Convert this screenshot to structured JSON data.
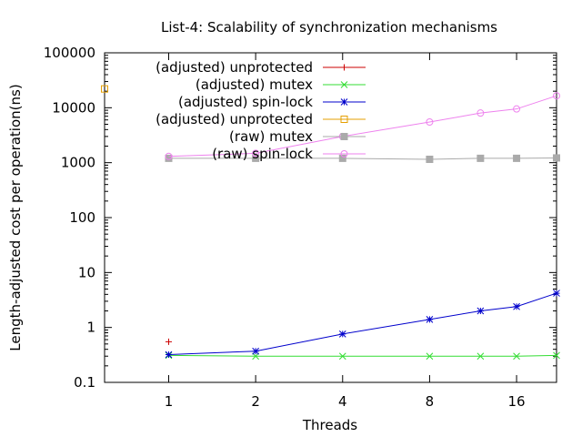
{
  "chart_data": {
    "type": "line",
    "title": "List-4: Scalability of synchronization mechanisms",
    "xlabel": "Threads",
    "ylabel": "Length-adjusted cost per operation(ns)",
    "x_scale": "log2",
    "y_scale": "log10",
    "xlim": [
      0.6,
      22
    ],
    "ylim": [
      0.1,
      100000
    ],
    "x_ticks": [
      1,
      2,
      4,
      8,
      16
    ],
    "x_tick_labels": [
      "1",
      "2",
      "4",
      "8",
      "16"
    ],
    "y_ticks": [
      0.1,
      1,
      10,
      100,
      1000,
      10000,
      100000
    ],
    "y_tick_labels": [
      "0.1",
      "1",
      "10",
      "100",
      "1000",
      "10000",
      "100000"
    ],
    "legend_position": "top-left",
    "series": [
      {
        "name": "(adjusted) unprotected",
        "color": "#cc0000",
        "marker": "plus",
        "line": false,
        "x": [
          1
        ],
        "y": [
          0.55
        ]
      },
      {
        "name": "(adjusted) mutex",
        "color": "#33dd33",
        "marker": "cross",
        "line": true,
        "x": [
          1,
          2,
          4,
          8,
          12,
          16,
          22
        ],
        "y": [
          0.31,
          0.3,
          0.3,
          0.3,
          0.3,
          0.3,
          0.31
        ]
      },
      {
        "name": "(adjusted) spin-lock",
        "color": "#0000cc",
        "marker": "star",
        "line": true,
        "x": [
          1,
          2,
          4,
          8,
          12,
          16,
          22
        ],
        "y": [
          0.32,
          0.37,
          0.76,
          1.4,
          2.0,
          2.4,
          4.2
        ]
      },
      {
        "name": "(adjusted) unprotected",
        "color": "#e69f00",
        "marker": "square",
        "line": false,
        "x": [
          0.6
        ],
        "y": [
          22000
        ]
      },
      {
        "name": "(raw) mutex",
        "color": "#aaaaaa",
        "marker": "filled-square",
        "line": true,
        "x": [
          1,
          2,
          4,
          8,
          12,
          16,
          22
        ],
        "y": [
          1200,
          1200,
          1200,
          1150,
          1200,
          1200,
          1220
        ]
      },
      {
        "name": "(raw) spin-lock",
        "color": "#ee82ee",
        "marker": "circle",
        "line": true,
        "x": [
          1,
          2,
          4,
          8,
          12,
          16,
          22
        ],
        "y": [
          1300,
          1480,
          3000,
          5500,
          8000,
          9500,
          16500
        ]
      }
    ]
  }
}
